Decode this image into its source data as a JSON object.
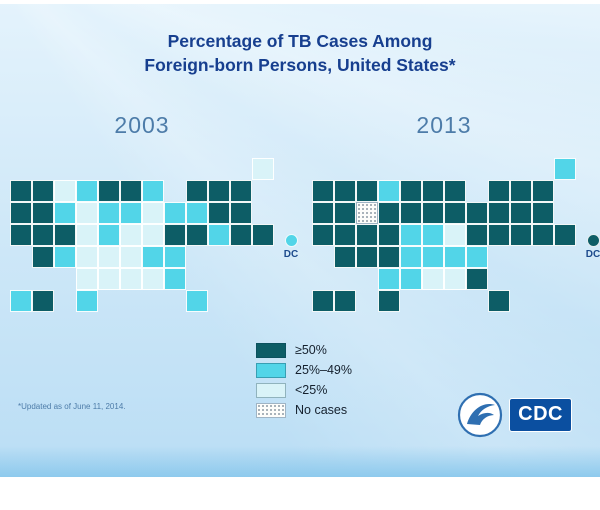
{
  "slide": {
    "title_line1": "Percentage of TB Cases Among",
    "title_line2": "Foreign-born Persons, United States*",
    "footnote": "*Updated as of June 11, 2014.",
    "logo_text": "CDC"
  },
  "legend": {
    "position": "bottom-center",
    "items": [
      {
        "label": "≥50%",
        "color": "#0d5d66",
        "pattern": "solid"
      },
      {
        "label": "25%–49%",
        "color": "#52d5e8",
        "pattern": "solid"
      },
      {
        "label": "<25%",
        "color": "#d9f3f8",
        "pattern": "solid"
      },
      {
        "label": "No cases",
        "color": "#ffffff",
        "pattern": "stipple"
      }
    ]
  },
  "chart_data": [
    {
      "type": "choropleth",
      "region": "United States",
      "year": "2003",
      "metric": "Percentage of TB cases among foreign-born persons",
      "dc_label": "DC",
      "dc_category": "25%–49%",
      "state_categories": {
        "≥50%": [
          "WA",
          "OR",
          "CA",
          "NV",
          "ID",
          "UT",
          "CO",
          "AZ",
          "MN",
          "WI",
          "NY",
          "VT",
          "NH",
          "MA",
          "RI",
          "CT",
          "NJ",
          "MD",
          "VA",
          "HI"
        ],
        "25%–49%": [
          "ND",
          "WY",
          "IA",
          "MO",
          "IL",
          "OH",
          "PA",
          "MI",
          "NM",
          "TX",
          "FL",
          "GA",
          "NC",
          "SC",
          "DE",
          "AK"
        ],
        "<25%": [
          "MT",
          "SD",
          "NE",
          "KS",
          "OK",
          "AR",
          "LA",
          "MS",
          "AL",
          "TN",
          "KY",
          "WV",
          "IN",
          "ME"
        ],
        "No cases": []
      }
    },
    {
      "type": "choropleth",
      "region": "United States",
      "year": "2013",
      "metric": "Percentage of TB cases among foreign-born persons",
      "dc_label": "DC",
      "dc_category": "≥50%",
      "state_categories": {
        "≥50%": [
          "WA",
          "OR",
          "CA",
          "NV",
          "ID",
          "MT",
          "UT",
          "CO",
          "AZ",
          "NM",
          "TX",
          "KS",
          "NE",
          "SD",
          "MN",
          "IA",
          "WI",
          "MI",
          "IL",
          "IN",
          "OH",
          "NY",
          "PA",
          "VT",
          "NH",
          "MA",
          "RI",
          "CT",
          "NJ",
          "DE",
          "MD",
          "VA",
          "GA",
          "FL",
          "HI",
          "AK"
        ],
        "25%–49%": [
          "ND",
          "MO",
          "OK",
          "LA",
          "AR",
          "KY",
          "TN",
          "NC",
          "SC",
          "ME"
        ],
        "<25%": [
          "MS",
          "AL",
          "WV"
        ],
        "No cases": [
          "WY"
        ]
      }
    }
  ]
}
